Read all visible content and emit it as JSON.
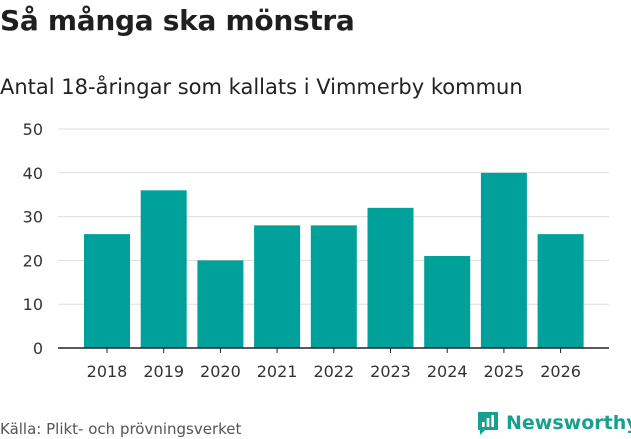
{
  "header": {
    "title": "Så många ska mönstra",
    "subtitle": "Antal 18-åringar som kallats i Vimmerby kommun"
  },
  "footer": {
    "source": "Källa: Plikt- och prövningsverket",
    "brand": "Newsworthy",
    "brand_icon": "newsworthy-logo-icon",
    "brand_color": "#18a08f"
  },
  "chart_data": {
    "type": "bar",
    "title": "Så många ska mönstra",
    "subtitle": "Antal 18-åringar som kallats i Vimmerby kommun",
    "xlabel": "",
    "ylabel": "",
    "categories": [
      "2018",
      "2019",
      "2020",
      "2021",
      "2022",
      "2023",
      "2024",
      "2025",
      "2026"
    ],
    "values": [
      26,
      36,
      20,
      28,
      28,
      32,
      21,
      40,
      26
    ],
    "ylim": [
      0,
      50
    ],
    "yticks": [
      0,
      10,
      20,
      30,
      40,
      50
    ],
    "grid": true,
    "legend": "none",
    "bar_color": "#00a19a",
    "grid_color": "#dddddd",
    "axis_color": "#222222"
  }
}
